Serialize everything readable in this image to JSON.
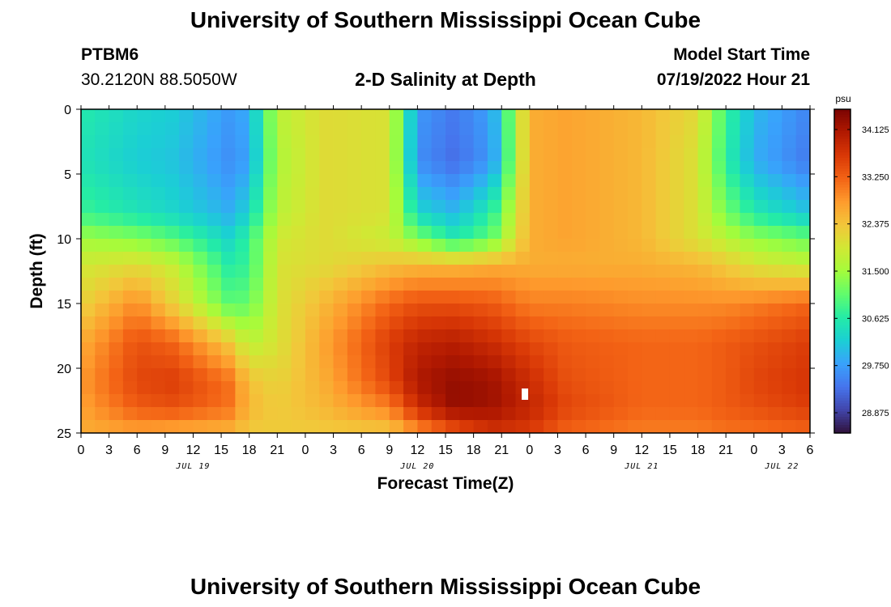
{
  "header": {
    "title": "University of Southern Mississippi Ocean Cube",
    "station_id": "PTBM6",
    "coordinates": "30.2120N  88.5050W",
    "chart_title": "2-D Salinity at Depth",
    "model_start_label": "Model Start Time",
    "model_start_value": "07/19/2022 Hour 21"
  },
  "footer": {
    "title": "University of Southern Mississippi Ocean Cube"
  },
  "chart_data": {
    "type": "heatmap",
    "title": "2-D Salinity at Depth",
    "xlabel": "Forecast Time(Z)",
    "ylabel": "Depth (ft)",
    "x_unit": "forecast hours since 07/19 00Z",
    "x_range_hours": [
      0,
      78
    ],
    "x_tick_labels": [
      "0",
      "3",
      "6",
      "9",
      "12",
      "15",
      "18",
      "21",
      "0",
      "3",
      "6",
      "9",
      "12",
      "15",
      "18",
      "21",
      "0",
      "3",
      "6",
      "9",
      "12",
      "15",
      "18",
      "21",
      "0",
      "3",
      "6"
    ],
    "date_labels": [
      "JUL 19",
      "JUL 20",
      "JUL 21",
      "JUL 22"
    ],
    "date_label_hours": [
      12,
      36,
      60,
      75
    ],
    "ylim": [
      0,
      25
    ],
    "y_reversed": true,
    "y_tick_labels": [
      "0",
      "5",
      "10",
      "15",
      "20",
      "25"
    ],
    "colorbar": {
      "unit": "psu",
      "min": 28.5,
      "max": 34.5,
      "ticks": [
        "34.125",
        "33.250",
        "32.375",
        "31.500",
        "30.625",
        "29.750",
        "28.875"
      ],
      "colors": [
        "#30123b",
        "#4145ab",
        "#4675ed",
        "#39a2fc",
        "#1bcfd4",
        "#24eca6",
        "#61fc6c",
        "#a4fc3b",
        "#d1e834",
        "#f3c63a",
        "#fe9b2d",
        "#f36315",
        "#d93806",
        "#b11901",
        "#7a0402"
      ]
    },
    "grid_hours_step": 1.5,
    "grid_depth_step": 1,
    "salinity_psu": {
      "hours": [
        0,
        6,
        10,
        16,
        18,
        21,
        26,
        33,
        36,
        40,
        44,
        48,
        52,
        60,
        66,
        69,
        72,
        78
      ],
      "depths": [
        0,
        4,
        8,
        10,
        12,
        15,
        18,
        21,
        23,
        25
      ],
      "values": [
        [
          30.6,
          30.3,
          30.2,
          29.7,
          29.9,
          31.7,
          32.1,
          32.0,
          29.7,
          29.4,
          29.8,
          32.6,
          32.7,
          32.5,
          32.1,
          30.8,
          30.0,
          29.5
        ],
        [
          30.5,
          30.2,
          30.1,
          29.6,
          29.8,
          31.6,
          32.1,
          32.0,
          29.6,
          29.3,
          29.7,
          32.6,
          32.7,
          32.5,
          32.0,
          30.7,
          29.9,
          29.4
        ],
        [
          30.8,
          30.5,
          30.3,
          29.9,
          30.3,
          31.7,
          32.1,
          32.0,
          30.3,
          30.0,
          30.7,
          32.6,
          32.7,
          32.5,
          32.0,
          31.2,
          30.6,
          30.1
        ],
        [
          31.5,
          31.3,
          31.0,
          30.3,
          30.8,
          31.9,
          32.1,
          31.8,
          31.3,
          30.6,
          31.1,
          32.6,
          32.7,
          32.5,
          32.0,
          31.7,
          31.4,
          31.1
        ],
        [
          31.9,
          32.1,
          31.8,
          30.6,
          30.8,
          32.0,
          32.1,
          32.4,
          32.5,
          32.5,
          32.6,
          32.6,
          32.6,
          32.6,
          32.5,
          32.3,
          32.0,
          31.8
        ],
        [
          32.2,
          32.9,
          32.2,
          31.0,
          31.1,
          32.0,
          32.5,
          33.2,
          33.4,
          33.4,
          33.3,
          33.0,
          33.0,
          32.9,
          32.9,
          32.9,
          33.0,
          33.2
        ],
        [
          32.6,
          33.4,
          33.2,
          32.3,
          31.7,
          32.0,
          32.7,
          33.6,
          33.9,
          34.0,
          33.8,
          33.5,
          33.3,
          33.2,
          33.2,
          33.3,
          33.4,
          33.6
        ],
        [
          32.8,
          33.5,
          33.6,
          33.1,
          32.4,
          32.2,
          32.6,
          33.5,
          34.1,
          34.3,
          34.2,
          33.8,
          33.4,
          33.2,
          33.2,
          33.3,
          33.5,
          33.7
        ],
        [
          32.7,
          33.3,
          33.4,
          33.1,
          32.5,
          32.3,
          32.5,
          33.0,
          33.8,
          34.3,
          34.2,
          33.9,
          33.5,
          33.2,
          33.2,
          33.3,
          33.4,
          33.6
        ],
        [
          32.6,
          32.7,
          32.6,
          32.5,
          32.3,
          32.3,
          32.3,
          32.3,
          32.8,
          33.3,
          33.7,
          33.6,
          33.2,
          33.0,
          33.0,
          33.1,
          33.1,
          33.2
        ]
      ]
    },
    "marker": {
      "hour": 47.5,
      "depth_ft": 22
    }
  }
}
